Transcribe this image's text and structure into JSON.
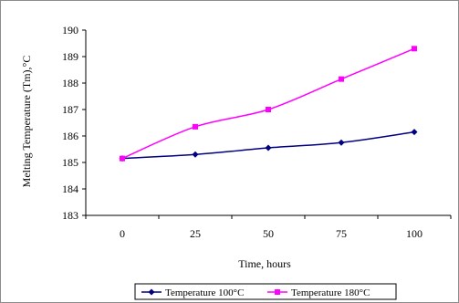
{
  "chart_data": {
    "type": "line",
    "title": "",
    "xlabel": "Time, hours",
    "ylabel": "Melting Temperature (Tm),°C",
    "categories": [
      "0",
      "25",
      "50",
      "75",
      "100"
    ],
    "x": [
      0,
      25,
      50,
      75,
      100
    ],
    "ylim": [
      183,
      190
    ],
    "yticks": [
      183,
      184,
      185,
      186,
      187,
      188,
      189,
      190
    ],
    "grid": false,
    "legend_position": "bottom",
    "series": [
      {
        "name": "Temperature 100°C",
        "color": "#000080",
        "marker": "diamond",
        "values": [
          185.15,
          185.3,
          185.55,
          185.75,
          186.15
        ]
      },
      {
        "name": "Temperature 180°C",
        "color": "#ff00ff",
        "marker": "square",
        "values": [
          185.15,
          186.35,
          187.0,
          188.15,
          189.3
        ]
      }
    ]
  }
}
